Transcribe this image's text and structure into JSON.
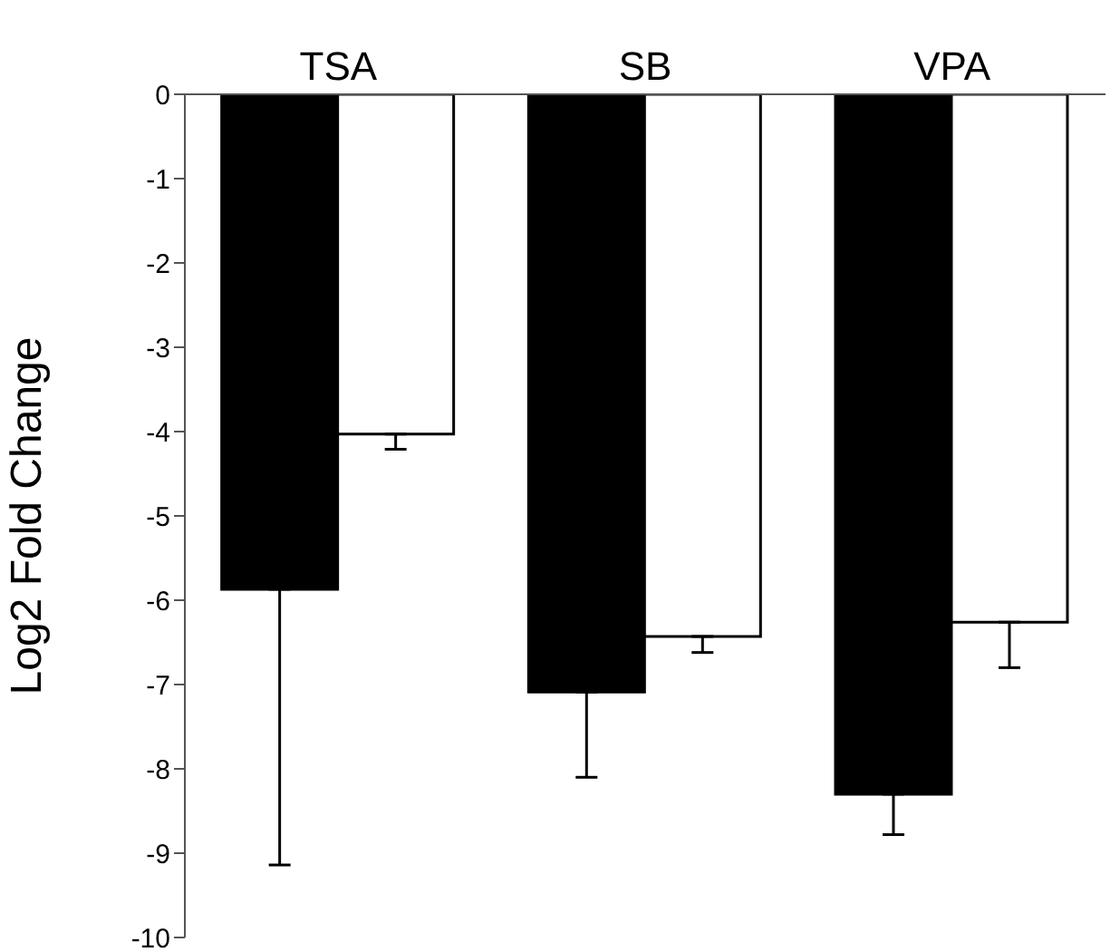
{
  "chart_data": {
    "type": "bar",
    "ylabel": "Log2 Fold Change",
    "categories": [
      "TSA",
      "SB",
      "VPA"
    ],
    "series": [
      {
        "color": "#000000",
        "values": [
          -5.87,
          -7.09,
          -8.3
        ],
        "errors": [
          [
            -9.14,
            -5.87
          ],
          [
            -8.1,
            -7.09
          ],
          [
            -8.78,
            -8.3
          ]
        ]
      },
      {
        "color": "#ffffff",
        "values": [
          -4.03,
          -6.43,
          -6.26
        ],
        "errors": [
          [
            -4.21,
            -4.03
          ],
          [
            -6.62,
            -6.43
          ],
          [
            -6.8,
            -6.26
          ]
        ]
      }
    ],
    "ylim": [
      -10,
      0
    ],
    "yticks": [
      0,
      -1,
      -2,
      -3,
      -4,
      -5,
      -6,
      -7,
      -8,
      -9,
      -10
    ],
    "grid": false,
    "legend": false
  }
}
